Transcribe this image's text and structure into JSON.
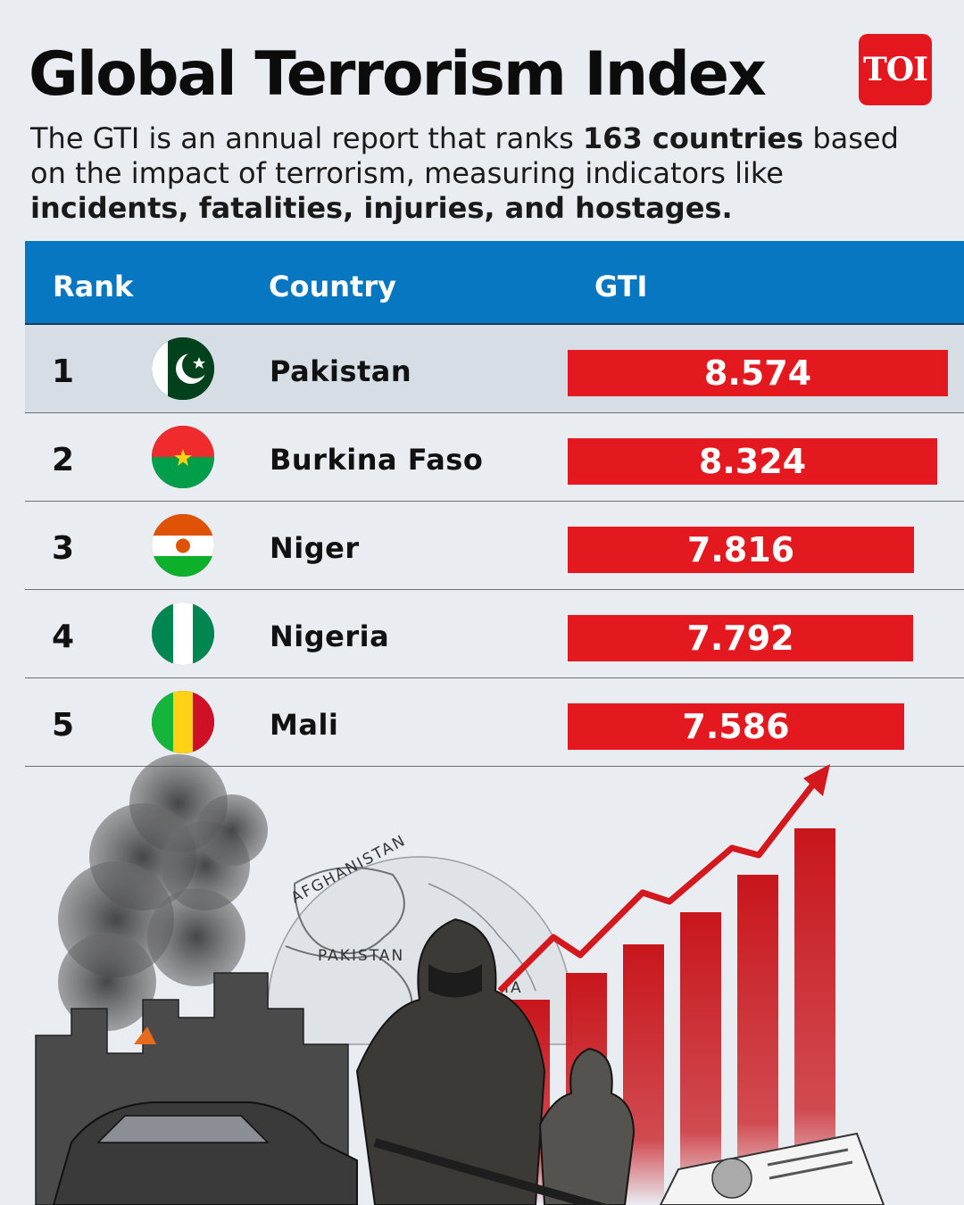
{
  "header": {
    "title": "Global Terrorism Index",
    "logo": "TOI"
  },
  "intro": {
    "part1": "The GTI is an annual report that ranks ",
    "bold1": "163 countries",
    "part2": " based on the impact of terrorism, measuring indicators like ",
    "bold2": "incidents, fatalities, injuries, and hostages."
  },
  "table": {
    "columns": [
      "Rank",
      "Country",
      "GTI"
    ]
  },
  "chart_data": {
    "type": "bar",
    "title": "Global Terrorism Index",
    "categories": [
      "Pakistan",
      "Burkina Faso",
      "Niger",
      "Nigeria",
      "Mali"
    ],
    "ranks": [
      "1",
      "2",
      "3",
      "4",
      "5"
    ],
    "values": [
      8.574,
      8.324,
      7.816,
      7.792,
      7.586
    ],
    "value_labels": [
      "8.574",
      "8.324",
      "7.816",
      "7.792",
      "7.586"
    ],
    "flags": [
      "pakistan-flag-icon",
      "burkina-faso-flag-icon",
      "niger-flag-icon",
      "nigeria-flag-icon",
      "mali-flag-icon"
    ],
    "bar_color": "#e3191f",
    "highlight_row": 1
  },
  "illustration": {
    "map_labels": [
      "AFGHANISTAN",
      "PAKISTAN",
      "IA"
    ]
  },
  "colors": {
    "header_blue": "#0877c1",
    "accent_red": "#e3191f",
    "background": "#e9ecf1"
  }
}
